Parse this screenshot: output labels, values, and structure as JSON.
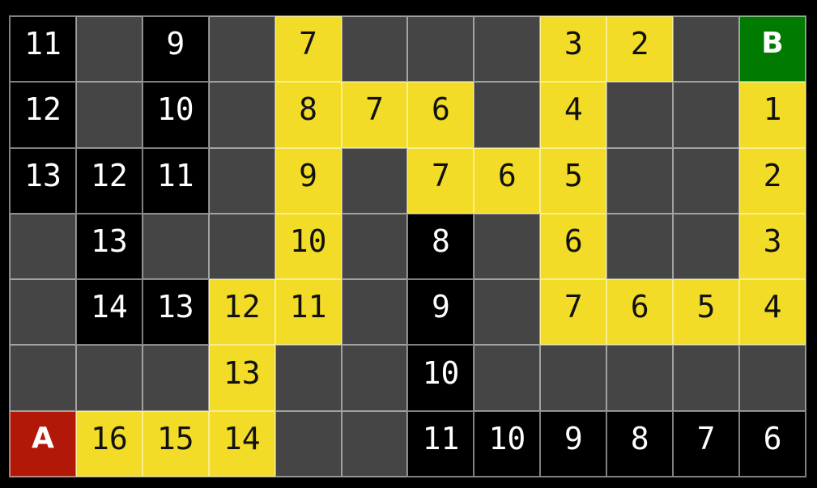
{
  "title": "pathfinding-grid-visualization",
  "board": {
    "rows": 7,
    "cols": 12,
    "start_label": "A",
    "goal_label": "B",
    "cell_types": {
      "empty": "unvisited-cell",
      "visited": "visited-cell-with-distance",
      "path": "path-cell-with-distance",
      "start": "start-cell",
      "goal": "goal-cell"
    },
    "cells": [
      [
        {
          "type": "visited",
          "label": "11"
        },
        {
          "type": "empty",
          "label": ""
        },
        {
          "type": "visited",
          "label": "9"
        },
        {
          "type": "empty",
          "label": ""
        },
        {
          "type": "path",
          "label": "7"
        },
        {
          "type": "empty",
          "label": ""
        },
        {
          "type": "empty",
          "label": ""
        },
        {
          "type": "empty",
          "label": ""
        },
        {
          "type": "path",
          "label": "3"
        },
        {
          "type": "path",
          "label": "2"
        },
        {
          "type": "empty",
          "label": ""
        },
        {
          "type": "goal",
          "label": "B"
        }
      ],
      [
        {
          "type": "visited",
          "label": "12"
        },
        {
          "type": "empty",
          "label": ""
        },
        {
          "type": "visited",
          "label": "10"
        },
        {
          "type": "empty",
          "label": ""
        },
        {
          "type": "path",
          "label": "8"
        },
        {
          "type": "path",
          "label": "7"
        },
        {
          "type": "path",
          "label": "6"
        },
        {
          "type": "empty",
          "label": ""
        },
        {
          "type": "path",
          "label": "4"
        },
        {
          "type": "empty",
          "label": ""
        },
        {
          "type": "empty",
          "label": ""
        },
        {
          "type": "path",
          "label": "1"
        }
      ],
      [
        {
          "type": "visited",
          "label": "13"
        },
        {
          "type": "visited",
          "label": "12"
        },
        {
          "type": "visited",
          "label": "11"
        },
        {
          "type": "empty",
          "label": ""
        },
        {
          "type": "path",
          "label": "9"
        },
        {
          "type": "empty",
          "label": ""
        },
        {
          "type": "path",
          "label": "7"
        },
        {
          "type": "path",
          "label": "6"
        },
        {
          "type": "path",
          "label": "5"
        },
        {
          "type": "empty",
          "label": ""
        },
        {
          "type": "empty",
          "label": ""
        },
        {
          "type": "path",
          "label": "2"
        }
      ],
      [
        {
          "type": "empty",
          "label": ""
        },
        {
          "type": "visited",
          "label": "13"
        },
        {
          "type": "empty",
          "label": ""
        },
        {
          "type": "empty",
          "label": ""
        },
        {
          "type": "path",
          "label": "10"
        },
        {
          "type": "empty",
          "label": ""
        },
        {
          "type": "visited",
          "label": "8"
        },
        {
          "type": "empty",
          "label": ""
        },
        {
          "type": "path",
          "label": "6"
        },
        {
          "type": "empty",
          "label": ""
        },
        {
          "type": "empty",
          "label": ""
        },
        {
          "type": "path",
          "label": "3"
        }
      ],
      [
        {
          "type": "empty",
          "label": ""
        },
        {
          "type": "visited",
          "label": "14"
        },
        {
          "type": "visited",
          "label": "13"
        },
        {
          "type": "path",
          "label": "12"
        },
        {
          "type": "path",
          "label": "11"
        },
        {
          "type": "empty",
          "label": ""
        },
        {
          "type": "visited",
          "label": "9"
        },
        {
          "type": "empty",
          "label": ""
        },
        {
          "type": "path",
          "label": "7"
        },
        {
          "type": "path",
          "label": "6"
        },
        {
          "type": "path",
          "label": "5"
        },
        {
          "type": "path",
          "label": "4"
        }
      ],
      [
        {
          "type": "empty",
          "label": ""
        },
        {
          "type": "empty",
          "label": ""
        },
        {
          "type": "empty",
          "label": ""
        },
        {
          "type": "path",
          "label": "13"
        },
        {
          "type": "empty",
          "label": ""
        },
        {
          "type": "empty",
          "label": ""
        },
        {
          "type": "visited",
          "label": "10"
        },
        {
          "type": "empty",
          "label": ""
        },
        {
          "type": "empty",
          "label": ""
        },
        {
          "type": "empty",
          "label": ""
        },
        {
          "type": "empty",
          "label": ""
        },
        {
          "type": "empty",
          "label": ""
        }
      ],
      [
        {
          "type": "start",
          "label": "A"
        },
        {
          "type": "path",
          "label": "16"
        },
        {
          "type": "path",
          "label": "15"
        },
        {
          "type": "path",
          "label": "14"
        },
        {
          "type": "empty",
          "label": ""
        },
        {
          "type": "empty",
          "label": ""
        },
        {
          "type": "visited",
          "label": "11"
        },
        {
          "type": "visited",
          "label": "10"
        },
        {
          "type": "visited",
          "label": "9"
        },
        {
          "type": "visited",
          "label": "8"
        },
        {
          "type": "visited",
          "label": "7"
        },
        {
          "type": "visited",
          "label": "6"
        }
      ]
    ]
  },
  "colors": {
    "background": "#000000",
    "empty_cell": "#454545",
    "visited_cell": "#000000",
    "visited_text": "#ffffff",
    "path_cell": "#f3dc28",
    "path_text": "#111111",
    "start_cell": "#b21807",
    "goal_cell": "#007a00",
    "marker_text": "#ffffff",
    "grid_line": "rgba(255,255,255,0.5)"
  }
}
